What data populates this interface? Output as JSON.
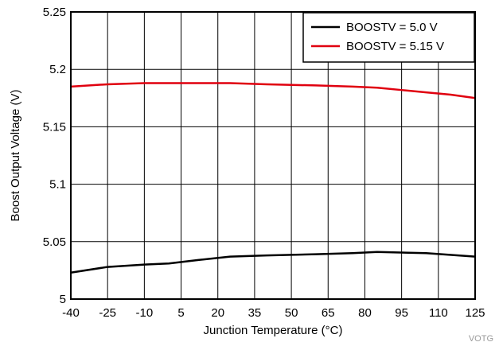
{
  "chart_data": {
    "type": "line",
    "xlabel": "Junction Temperature (°C)",
    "ylabel": "Boost Output Voltage (V)",
    "x_categories": [
      "-40",
      "-25",
      "-10",
      "5",
      "20",
      "35",
      "50",
      "65",
      "80",
      "95",
      "110",
      "125"
    ],
    "yticks": [
      "5",
      "5.05",
      "5.1",
      "5.15",
      "5.2",
      "5.25"
    ],
    "ylim": [
      5.0,
      5.25
    ],
    "grid": true,
    "legend_position": "top-right",
    "series": [
      {
        "name": "BOOSTV = 5.0 V",
        "color": "#000000",
        "x": [
          -40,
          -25,
          -10,
          0,
          12,
          25,
          40,
          60,
          75,
          85,
          105,
          125
        ],
        "y": [
          5.023,
          5.028,
          5.03,
          5.031,
          5.034,
          5.037,
          5.038,
          5.039,
          5.04,
          5.041,
          5.04,
          5.037
        ]
      },
      {
        "name": "BOOSTV = 5.15 V",
        "color": "#e0000f",
        "x": [
          -40,
          -25,
          -10,
          0,
          10,
          25,
          40,
          60,
          75,
          85,
          95,
          105,
          115,
          125
        ],
        "y": [
          5.185,
          5.187,
          5.188,
          5.188,
          5.188,
          5.188,
          5.187,
          5.186,
          5.185,
          5.184,
          5.182,
          5.18,
          5.178,
          5.175
        ]
      }
    ],
    "watermark": "VOTG"
  }
}
